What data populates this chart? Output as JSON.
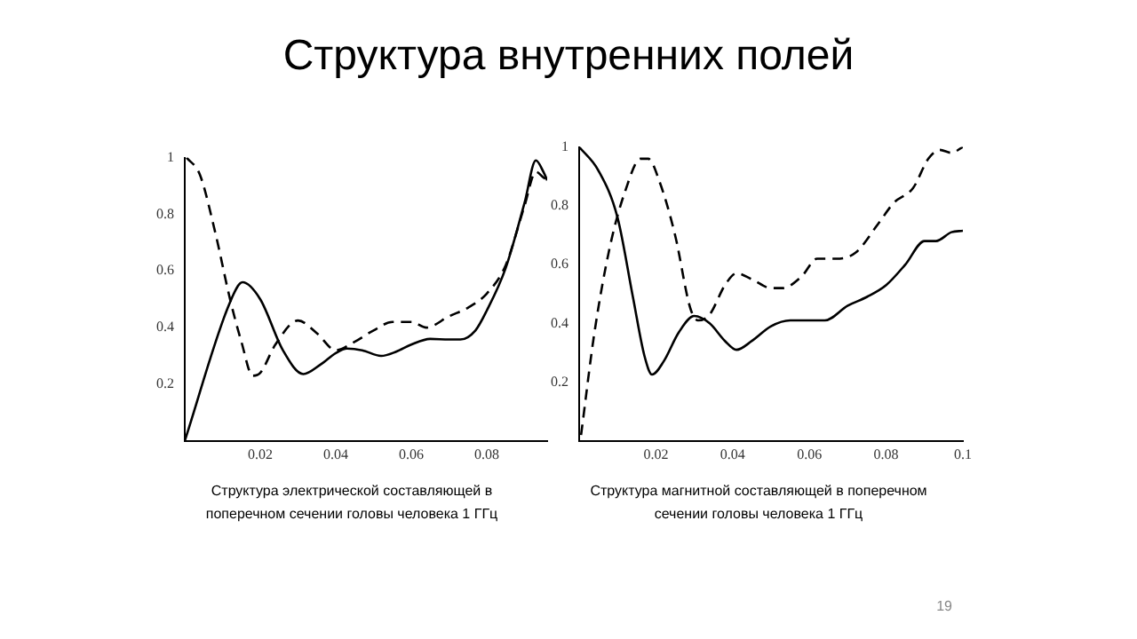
{
  "chart_data": [
    {
      "type": "line",
      "title": "Структура внутренних полей",
      "xlabel": "Структура электрической составляющей в поперечном сечении головы человека 1 ГГц",
      "xlim": [
        0,
        0.096
      ],
      "ylim": [
        0,
        1
      ],
      "xticks": [
        0.02,
        0.04,
        0.06,
        0.08
      ],
      "yticks": [
        0.2,
        0.4,
        0.6,
        0.8,
        1
      ],
      "grid": false,
      "legend": false,
      "marker": "none",
      "series": [
        {
          "color": "#000000",
          "line_style": "solid",
          "x": [
            0,
            0.012,
            0.0153,
            0.02,
            0.026,
            0.0314,
            0.036,
            0.04,
            0.043,
            0.047,
            0.052,
            0.056,
            0.06,
            0.065,
            0.07,
            0.073,
            0.077,
            0.08,
            0.085,
            0.09,
            0.093,
            0.095,
            0.096
          ],
          "values": [
            0,
            0.49,
            0.56,
            0.5,
            0.32,
            0.236,
            0.27,
            0.31,
            0.326,
            0.32,
            0.3,
            0.315,
            0.34,
            0.36,
            0.358,
            0.358,
            0.39,
            0.46,
            0.61,
            0.84,
            0.99,
            0.95,
            0.92
          ]
        },
        {
          "color": "#000000",
          "line_style": "dashed",
          "x": [
            0.0005,
            0.004,
            0.008,
            0.012,
            0.015,
            0.018,
            0.02,
            0.024,
            0.03,
            0.035,
            0.04,
            0.045,
            0.05,
            0.055,
            0.06,
            0.064,
            0.07,
            0.075,
            0.08,
            0.085,
            0.09,
            0.093,
            0.095,
            0.096
          ],
          "values": [
            1,
            0.94,
            0.74,
            0.5,
            0.35,
            0.23,
            0.24,
            0.34,
            0.425,
            0.38,
            0.32,
            0.35,
            0.39,
            0.42,
            0.42,
            0.4,
            0.44,
            0.47,
            0.52,
            0.62,
            0.83,
            0.95,
            0.93,
            0.92
          ]
        }
      ]
    },
    {
      "type": "line",
      "xlabel": "Структура магнитной составляющей в поперечном сечении головы человека 1 ГГц",
      "annotations": [
        "19"
      ],
      "xlim": [
        0,
        0.1
      ],
      "ylim": [
        0,
        1
      ],
      "xticks": [
        0.02,
        0.04,
        0.06,
        0.08,
        0.1
      ],
      "yticks": [
        0.2,
        0.4,
        0.6,
        0.8,
        1
      ],
      "grid": false,
      "legend": false,
      "marker": "none",
      "series": [
        {
          "color": "#000000",
          "line_style": "solid",
          "x": [
            0,
            0.005,
            0.01,
            0.014,
            0.017,
            0.019,
            0.022,
            0.026,
            0.03,
            0.034,
            0.038,
            0.041,
            0.045,
            0.05,
            0.055,
            0.06,
            0.064,
            0.07,
            0.075,
            0.08,
            0.085,
            0.09,
            0.093,
            0.097,
            0.1
          ],
          "values": [
            1,
            0.92,
            0.76,
            0.49,
            0.29,
            0.226,
            0.27,
            0.37,
            0.425,
            0.4,
            0.34,
            0.31,
            0.34,
            0.39,
            0.41,
            0.41,
            0.41,
            0.46,
            0.49,
            0.53,
            0.6,
            0.68,
            0.68,
            0.71,
            0.715
          ]
        },
        {
          "color": "#000000",
          "line_style": "dashed",
          "x": [
            0.0005,
            0.004,
            0.008,
            0.012,
            0.016,
            0.018,
            0.021,
            0.025,
            0.029,
            0.031,
            0.034,
            0.038,
            0.041,
            0.045,
            0.05,
            0.053,
            0.058,
            0.062,
            0.067,
            0.072,
            0.078,
            0.082,
            0.087,
            0.091,
            0.094,
            0.097,
            0.1
          ],
          "values": [
            0.02,
            0.37,
            0.66,
            0.85,
            0.96,
            0.96,
            0.88,
            0.7,
            0.45,
            0.41,
            0.43,
            0.53,
            0.57,
            0.55,
            0.52,
            0.52,
            0.56,
            0.62,
            0.62,
            0.64,
            0.74,
            0.81,
            0.86,
            0.96,
            0.99,
            0.98,
            1
          ]
        }
      ]
    }
  ]
}
